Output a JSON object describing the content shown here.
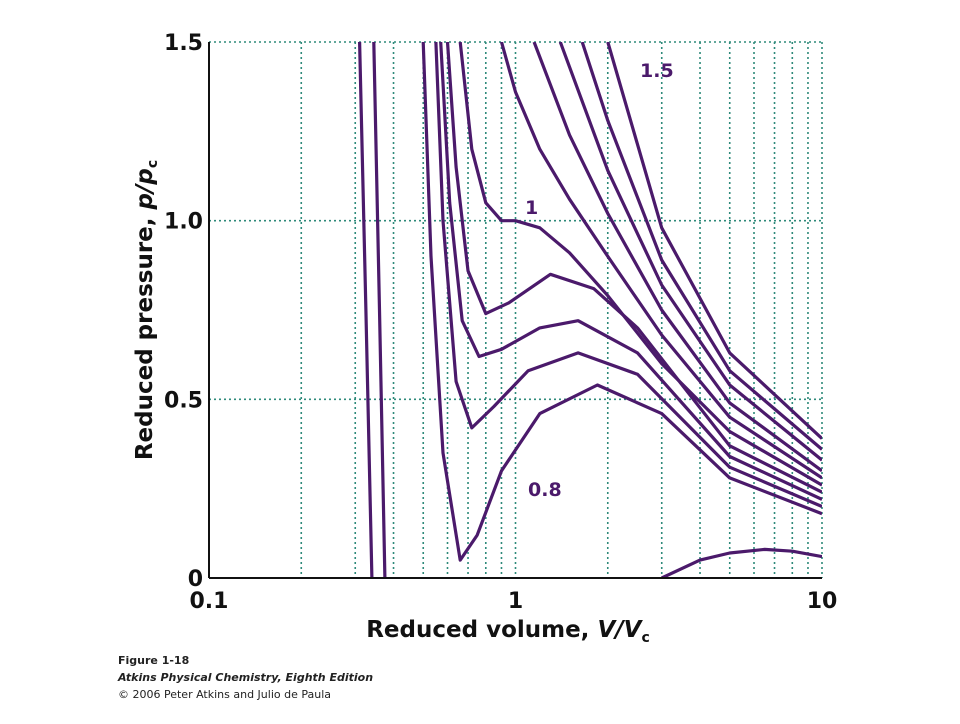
{
  "chart_data": {
    "type": "line",
    "xlabel": {
      "text": "Reduced volume,",
      "var": "V/V",
      "sub": "c"
    },
    "ylabel": {
      "text": "Reduced pressure,",
      "var": "p/p",
      "sub": "c"
    },
    "log_x": true,
    "xlim": [
      0.1,
      10
    ],
    "xticks": [
      0.1,
      1,
      10
    ],
    "xgrid_minor": [
      0.2,
      0.3,
      0.4,
      0.5,
      0.6,
      0.7,
      0.8,
      0.9,
      2,
      3,
      4,
      5,
      6,
      7,
      8,
      9
    ],
    "ylim": [
      0,
      1.5
    ],
    "yticks": [
      0,
      0.5,
      {
        "value": 1,
        "label": "1.0"
      },
      1.5
    ],
    "grid": true,
    "grid_color": "#2e8a7a",
    "color": "#4b1a6b",
    "series": [
      {
        "x": [
          0.31,
          0.325,
          0.34,
          1,
          3,
          4,
          5,
          6.5,
          8,
          10
        ],
        "values": [
          1.5,
          0.75,
          0,
          null,
          0,
          0.05,
          0.07,
          0.08,
          0.075,
          0.06
        ]
      },
      {
        "x": [
          0.345,
          0.36,
          0.375
        ],
        "values": [
          1.5,
          0.75,
          0
        ]
      },
      {
        "label": "0.8",
        "x": [
          0.5,
          0.53,
          0.58,
          0.66,
          0.75,
          0.9,
          1.2,
          1.85,
          3,
          5,
          10
        ],
        "values": [
          1.5,
          0.9,
          0.35,
          0.05,
          0.12,
          0.3,
          0.46,
          0.54,
          0.46,
          0.28,
          0.18
        ]
      },
      {
        "x": [
          0.55,
          0.58,
          0.64,
          0.72,
          0.85,
          1.1,
          1.6,
          2.5,
          5,
          10
        ],
        "values": [
          1.5,
          1.0,
          0.55,
          0.42,
          0.48,
          0.58,
          0.63,
          0.57,
          0.31,
          0.2
        ]
      },
      {
        "x": [
          0.57,
          0.61,
          0.67,
          0.76,
          0.9,
          1.2,
          1.6,
          2.5,
          5,
          10
        ],
        "values": [
          1.5,
          1.05,
          0.72,
          0.62,
          0.64,
          0.7,
          0.72,
          0.63,
          0.34,
          0.22
        ]
      },
      {
        "x": [
          0.6,
          0.64,
          0.7,
          0.8,
          0.95,
          1.3,
          1.8,
          2.5,
          5,
          10
        ],
        "values": [
          1.5,
          1.15,
          0.86,
          0.74,
          0.77,
          0.85,
          0.81,
          0.7,
          0.37,
          0.24
        ]
      },
      {
        "label": "1",
        "x": [
          0.66,
          0.72,
          0.8,
          0.9,
          1,
          1.2,
          1.5,
          2,
          3,
          5,
          10
        ],
        "values": [
          1.5,
          1.2,
          1.05,
          1.0,
          1.0,
          0.98,
          0.91,
          0.79,
          0.6,
          0.41,
          0.26
        ]
      },
      {
        "x": [
          0.9,
          1,
          1.2,
          1.5,
          2,
          3,
          5,
          10
        ],
        "values": [
          1.5,
          1.36,
          1.2,
          1.06,
          0.9,
          0.68,
          0.45,
          0.28
        ]
      },
      {
        "x": [
          1.15,
          1.5,
          2,
          3,
          5,
          10
        ],
        "values": [
          1.5,
          1.24,
          1.02,
          0.75,
          0.49,
          0.3
        ]
      },
      {
        "x": [
          1.4,
          2,
          3,
          5,
          10
        ],
        "values": [
          1.5,
          1.14,
          0.82,
          0.54,
          0.33
        ]
      },
      {
        "x": [
          1.65,
          2,
          3,
          5,
          10
        ],
        "values": [
          1.5,
          1.28,
          0.89,
          0.58,
          0.36
        ]
      },
      {
        "label": "1.5",
        "x": [
          2.0,
          3,
          5,
          10
        ],
        "values": [
          1.5,
          0.98,
          0.63,
          0.39
        ]
      }
    ]
  },
  "footer": {
    "figure": "Figure 1-18",
    "book": "Atkins Physical Chemistry, Eighth Edition",
    "copyright": "© 2006 Peter Atkins and Julio de Paula"
  }
}
